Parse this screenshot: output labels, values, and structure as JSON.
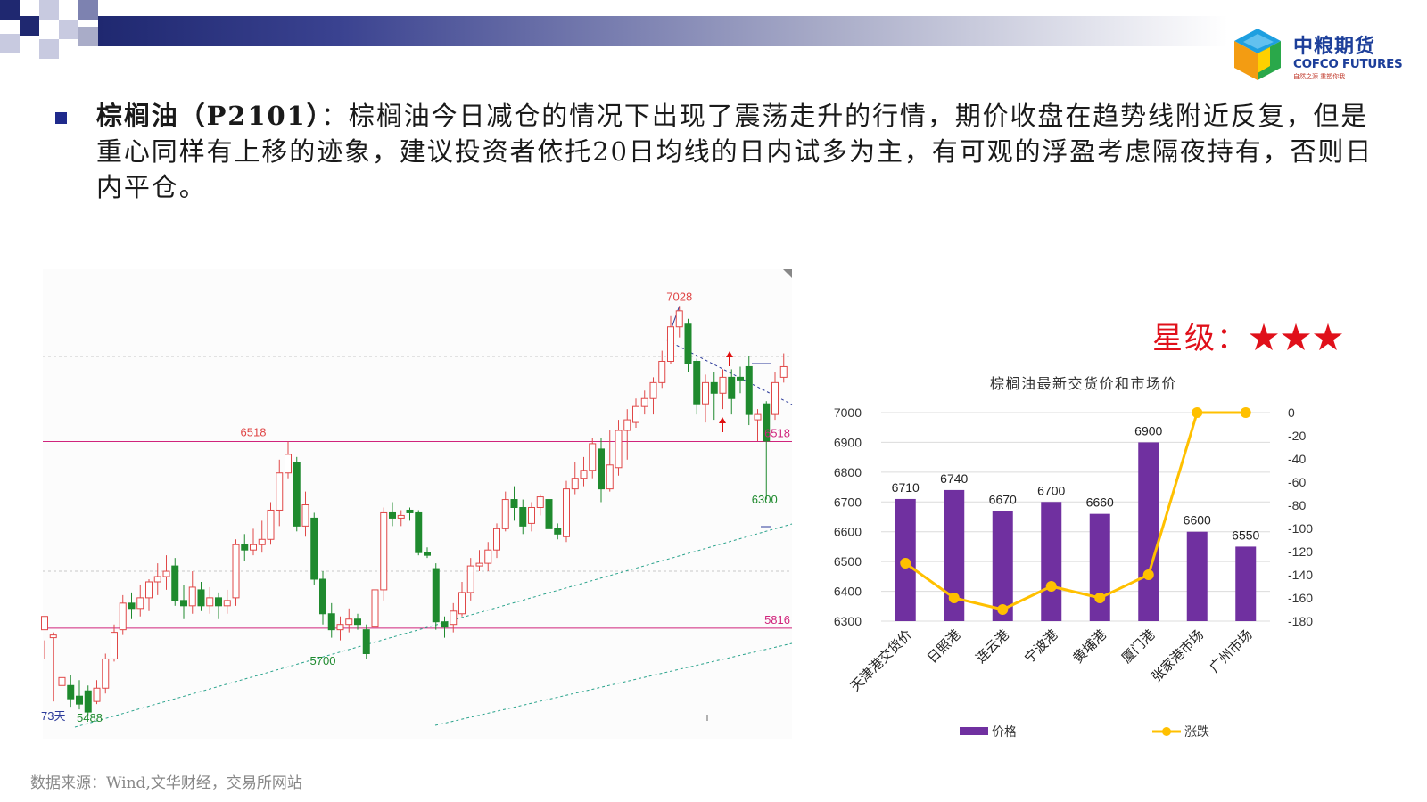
{
  "header": {
    "logo": {
      "cn": "中粮期货",
      "en": "COFCO FUTURES",
      "slogan": "自然之源 重塑你我"
    }
  },
  "commentary": {
    "label": "棕榈油（P2101）",
    "text": "：棕榈油今日减仓的情况下出现了震荡走升的行情，期价收盘在趋势线附近反复，但是重心同样有上移的迹象，建议投资者依托20日均线的日内试多为主，有可观的浮盈考虑隔夜持有，否则日内平仓。"
  },
  "rating": {
    "label": "星级：",
    "stars": "★★★"
  },
  "source_note": "数据来源：Wind,文华财经，交易所网站",
  "colors": {
    "bar": "#7030a0",
    "line": "#ffc000",
    "candle_up": "#e04848",
    "candle_down": "#1f8a2e",
    "hline": "#d0247c",
    "trend_teal": "#2aa38c",
    "trend_blue": "#2b3a9a",
    "bullet": "#1f2a8c"
  },
  "chart_data": [
    {
      "type": "candlestick",
      "title": "",
      "annotations": {
        "high_label": "7028",
        "left_high_label": "6518",
        "low_label_right": "6300",
        "mid_low_label": "5700",
        "start_low_label": "5488",
        "hline_upper": "6518",
        "hline_lower": "5816",
        "period_label": "73天"
      },
      "ylim": [
        5450,
        7100
      ],
      "hlines": [
        6518,
        5816
      ],
      "candles": [
        [
          5810,
          5860,
          5770,
          5700
        ],
        [
          5780,
          5790,
          5800,
          5540
        ],
        [
          5600,
          5630,
          5660,
          5560
        ],
        [
          5600,
          5550,
          5640,
          5520
        ],
        [
          5560,
          5530,
          5620,
          5510
        ],
        [
          5580,
          5500,
          5600,
          5488
        ],
        [
          5540,
          5590,
          5620,
          5530
        ],
        [
          5590,
          5700,
          5720,
          5570
        ],
        [
          5700,
          5800,
          5830,
          5690
        ],
        [
          5810,
          5910,
          5940,
          5790
        ],
        [
          5910,
          5890,
          5950,
          5850
        ],
        [
          5890,
          5930,
          5980,
          5860
        ],
        [
          5930,
          5990,
          6000,
          5880
        ],
        [
          5990,
          6010,
          6060,
          5940
        ],
        [
          6010,
          6030,
          6090,
          5960
        ],
        [
          6050,
          5920,
          6080,
          5900
        ],
        [
          5920,
          5900,
          5980,
          5850
        ],
        [
          5900,
          5970,
          6030,
          5870
        ],
        [
          5960,
          5900,
          5990,
          5880
        ],
        [
          5900,
          5930,
          5970,
          5870
        ],
        [
          5930,
          5900,
          5950,
          5850
        ],
        [
          5900,
          5920,
          5960,
          5870
        ],
        [
          5930,
          6130,
          6150,
          5900
        ],
        [
          6130,
          6110,
          6170,
          6070
        ],
        [
          6110,
          6130,
          6190,
          6090
        ],
        [
          6130,
          6150,
          6220,
          6100
        ],
        [
          6150,
          6260,
          6290,
          6130
        ],
        [
          6260,
          6400,
          6450,
          6200
        ],
        [
          6400,
          6470,
          6518,
          6380
        ],
        [
          6440,
          6200,
          6460,
          6180
        ],
        [
          6200,
          6280,
          6330,
          6160
        ],
        [
          6230,
          6000,
          6250,
          5980
        ],
        [
          6000,
          5870,
          6030,
          5830
        ],
        [
          5870,
          5810,
          5910,
          5780
        ],
        [
          5810,
          5830,
          5860,
          5770
        ],
        [
          5830,
          5850,
          5890,
          5800
        ],
        [
          5850,
          5830,
          5870,
          5810
        ],
        [
          5810,
          5720,
          5830,
          5700
        ],
        [
          5820,
          5960,
          5980,
          5800
        ],
        [
          5960,
          6250,
          6270,
          5920
        ],
        [
          6250,
          6230,
          6290,
          6200
        ],
        [
          6230,
          6240,
          6260,
          6200
        ],
        [
          6260,
          6250,
          6270,
          6220
        ],
        [
          6250,
          6100,
          6260,
          6090
        ],
        [
          6100,
          6090,
          6120,
          6080
        ],
        [
          6040,
          5840,
          6060,
          5810
        ],
        [
          5840,
          5820,
          5860,
          5780
        ],
        [
          5830,
          5880,
          5910,
          5800
        ],
        [
          5870,
          5950,
          5990,
          5860
        ],
        [
          5950,
          6050,
          6080,
          5920
        ],
        [
          6050,
          6060,
          6110,
          6030
        ],
        [
          6060,
          6110,
          6140,
          6030
        ],
        [
          6110,
          6190,
          6210,
          6080
        ],
        [
          6190,
          6300,
          6330,
          6180
        ],
        [
          6300,
          6270,
          6350,
          6220
        ],
        [
          6270,
          6200,
          6300,
          6170
        ],
        [
          6210,
          6270,
          6290,
          6180
        ],
        [
          6270,
          6310,
          6320,
          6240
        ],
        [
          6300,
          6190,
          6340,
          6170
        ],
        [
          6190,
          6170,
          6210,
          6150
        ],
        [
          6160,
          6340,
          6370,
          6140
        ],
        [
          6340,
          6380,
          6440,
          6320
        ],
        [
          6380,
          6410,
          6460,
          6350
        ],
        [
          6410,
          6510,
          6530,
          6380
        ],
        [
          6490,
          6340,
          6530,
          6290
        ],
        [
          6340,
          6430,
          6560,
          6330
        ],
        [
          6420,
          6560,
          6600,
          6390
        ],
        [
          6560,
          6600,
          6640,
          6450
        ],
        [
          6590,
          6650,
          6680,
          6570
        ],
        [
          6650,
          6680,
          6710,
          6620
        ],
        [
          6680,
          6740,
          6760,
          6620
        ],
        [
          6740,
          6820,
          6860,
          6720
        ],
        [
          6820,
          6950,
          6990,
          6810
        ],
        [
          6950,
          7010,
          7028,
          6910
        ],
        [
          6960,
          6810,
          6980,
          6780
        ],
        [
          6820,
          6660,
          6830,
          6620
        ],
        [
          6660,
          6740,
          6770,
          6590
        ],
        [
          6740,
          6700,
          6780,
          6600
        ],
        [
          6700,
          6760,
          6790,
          6640
        ],
        [
          6760,
          6680,
          6790,
          6620
        ],
        [
          6760,
          6750,
          6800,
          6700
        ],
        [
          6800,
          6620,
          6840,
          6580
        ],
        [
          6600,
          6620,
          6640,
          6520
        ],
        [
          6660,
          6520,
          6670,
          6300
        ],
        [
          6620,
          6740,
          6780,
          6600
        ],
        [
          6760,
          6800,
          6850,
          6740
        ]
      ]
    },
    {
      "type": "bar",
      "title": "棕榈油最新交货价和市场价",
      "categories": [
        "天津港交货价",
        "日照港",
        "连云港",
        "宁波港",
        "黄埔港",
        "厦门港",
        "张家港市场",
        "广州市场"
      ],
      "series": [
        {
          "name": "价格",
          "type": "bar",
          "axis": "left",
          "values": [
            6710,
            6740,
            6670,
            6700,
            6660,
            6900,
            6600,
            6550
          ]
        },
        {
          "name": "涨跌",
          "type": "line",
          "axis": "right",
          "values": [
            -130,
            -160,
            -170,
            -150,
            -160,
            -140,
            0,
            0
          ]
        }
      ],
      "ylim_left": [
        6300,
        7000
      ],
      "ylim_right": [
        -180,
        0
      ],
      "yticks_left": [
        6300,
        6400,
        6500,
        6600,
        6700,
        6800,
        6900,
        7000
      ],
      "yticks_right": [
        0,
        -20,
        -40,
        -60,
        -80,
        -100,
        -120,
        -140,
        -160,
        -180
      ],
      "grid": true,
      "legend": "bottom"
    }
  ]
}
